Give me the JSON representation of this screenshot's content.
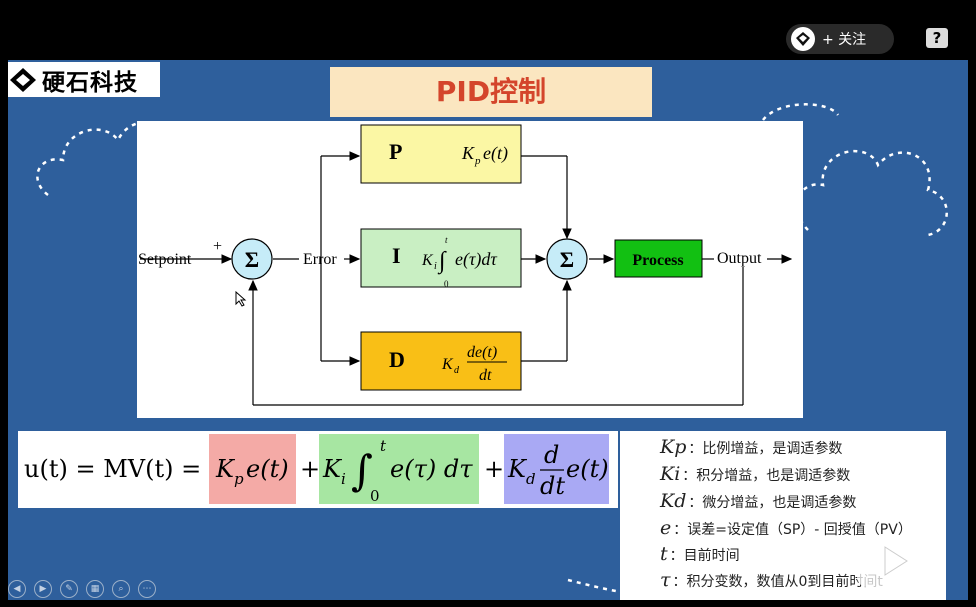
{
  "topbar": {
    "follow_label": "+ 关注",
    "help_label": "?"
  },
  "logo": {
    "text": "硬石科技"
  },
  "slide_title": "PID控制",
  "diagram": {
    "setpoint": "Setpoint",
    "plus": "+",
    "sum": "Σ",
    "error": "Error",
    "p_label": "P",
    "i_label": "I",
    "d_label": "D",
    "process": "Process",
    "output": "Output"
  },
  "formula": {
    "lhs": "u(t) = MV(t) =",
    "p_term": "Kpe(t)",
    "i_term": "Ki ∫ e(τ) dτ",
    "d_term": "Kd d/dt e(t)"
  },
  "legend": [
    {
      "sym": "Kp",
      "text": "：比例增益，是调适参数"
    },
    {
      "sym": "Ki",
      "text": "：积分增益，也是调适参数"
    },
    {
      "sym": "Kd",
      "text": "：微分增益，也是调适参数"
    },
    {
      "sym": "e",
      "text": "：误差=设定值（SP）- 回授值（PV）"
    },
    {
      "sym": "t",
      "text": "：目前时间"
    },
    {
      "sym": "τ",
      "text": "：积分变数，数值从0到目前时间t"
    }
  ],
  "colors": {
    "slide_bg": "#2e5f9c",
    "title_bg": "#fbe6c0",
    "title_text": "#d4452b",
    "p_block": "#fbf7a4",
    "i_block": "#c9efc3",
    "d_block": "#f9bf16",
    "process_block": "#12c012",
    "p_highlight": "#f4aaa6",
    "i_highlight": "#a7e6a2",
    "d_highlight": "#a9a9f4"
  }
}
